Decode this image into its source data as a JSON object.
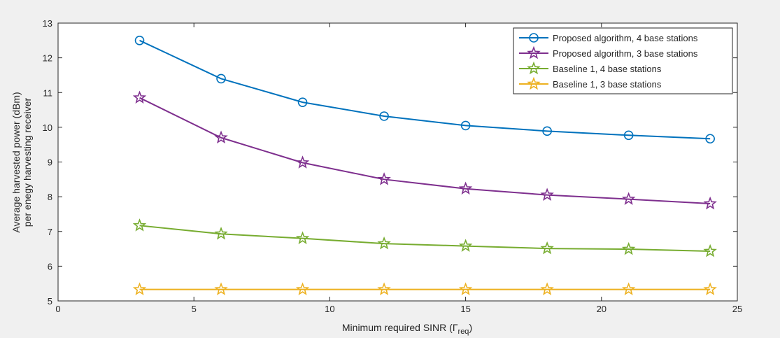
{
  "colors": {
    "figure_bg": "#f0f0f0",
    "axes_bg": "#ffffff",
    "axis": "#262626"
  },
  "chart_data": {
    "type": "line",
    "xlabel": "Minimum required SINR (Γ",
    "xlabel_subscript": "req",
    "xlabel_close": ")",
    "ylabel_line1": "Average  harvested power (dBm)",
    "ylabel_line2": "per enegy harvesting receiver",
    "xlim": [
      0,
      25
    ],
    "ylim": [
      5,
      13
    ],
    "xticks": [
      0,
      5,
      10,
      15,
      20,
      25
    ],
    "yticks": [
      5,
      6,
      7,
      8,
      9,
      10,
      11,
      12,
      13
    ],
    "grid": false,
    "legend_position": "top-right",
    "x": [
      3,
      6,
      9,
      12,
      15,
      18,
      21,
      24
    ],
    "series": [
      {
        "name": "Proposed algorithm, 4 base stations",
        "color": "#0072bd",
        "marker": "circle",
        "values": [
          12.5,
          11.4,
          10.72,
          10.32,
          10.05,
          9.89,
          9.77,
          9.67
        ]
      },
      {
        "name": "Proposed algorithm, 3 base stations",
        "color": "#7e2f8e",
        "marker": "star",
        "values": [
          10.85,
          9.7,
          8.98,
          8.5,
          8.23,
          8.05,
          7.93,
          7.8
        ]
      },
      {
        "name": "Baseline 1, 4 base stations",
        "color": "#77ac30",
        "marker": "star",
        "values": [
          7.17,
          6.93,
          6.8,
          6.65,
          6.58,
          6.51,
          6.49,
          6.43
        ]
      },
      {
        "name": "Baseline 1, 3 base stations",
        "color": "#edb120",
        "marker": "star",
        "values": [
          5.33,
          5.33,
          5.33,
          5.33,
          5.33,
          5.33,
          5.33,
          5.33
        ]
      }
    ]
  }
}
